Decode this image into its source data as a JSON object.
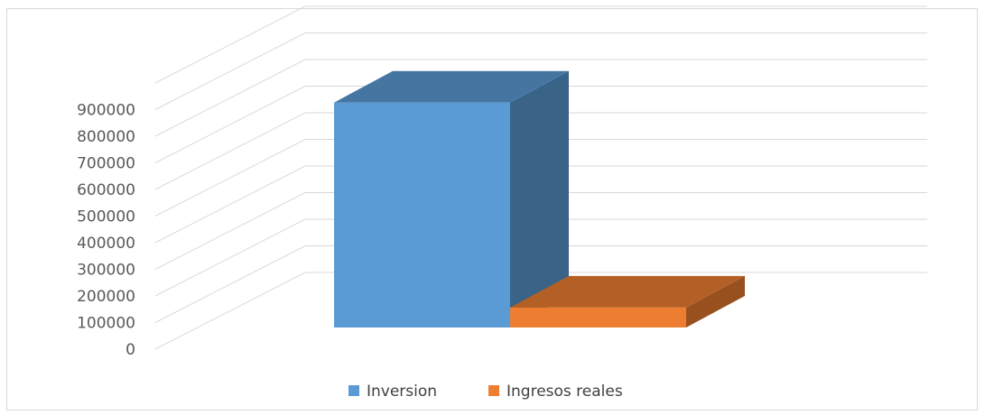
{
  "chart_data": {
    "type": "bar",
    "style": "3d-clustered-column",
    "categories": [
      ""
    ],
    "series": [
      {
        "name": "Inversion",
        "values": [
          845000
        ],
        "color": "#5B9BD5"
      },
      {
        "name": "Ingresos reales",
        "values": [
          75000
        ],
        "color": "#ED7D31"
      }
    ],
    "y_ticks": [
      "0",
      "100000",
      "200000",
      "300000",
      "400000",
      "500000",
      "600000",
      "700000",
      "800000",
      "900000"
    ],
    "ylim": [
      0,
      900000
    ],
    "grid": true,
    "legend_position": "bottom",
    "title": "",
    "xlabel": "",
    "ylabel": ""
  }
}
